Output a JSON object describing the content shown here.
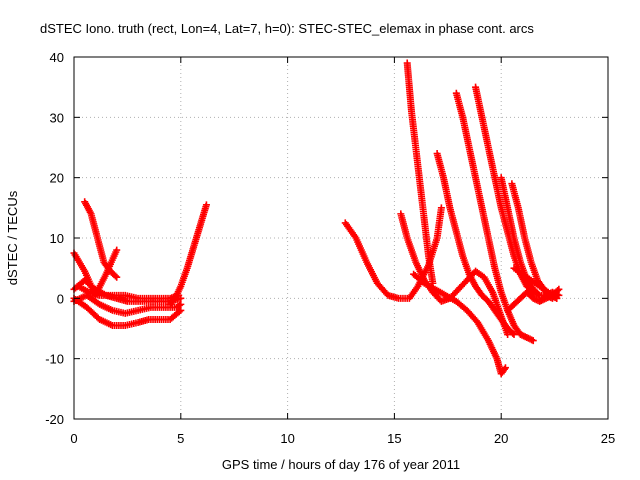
{
  "chart_data": {
    "type": "scatter",
    "title": "dSTEC Iono. truth (rect, Lon=4, Lat=7, h=0): STEC-STEC_elemax in phase cont. arcs",
    "xlabel": "GPS time / hours of day 176 of year 2011",
    "ylabel": "dSTEC  / TECUs",
    "xlim": [
      0,
      25
    ],
    "ylim": [
      -20,
      40
    ],
    "xticks": [
      0,
      5,
      10,
      15,
      20,
      25
    ],
    "yticks": [
      -20,
      -10,
      0,
      10,
      20,
      30,
      40
    ],
    "grid": true,
    "marker": "+",
    "color": "#ff0000",
    "series": [
      {
        "x": [
          0.0,
          0.5,
          1.0,
          1.5,
          2.0
        ],
        "y": [
          7.5,
          4.5,
          0.5,
          4.0,
          8.0
        ]
      },
      {
        "x": [
          0.5,
          0.8,
          1.1,
          1.4,
          1.7,
          2.0
        ],
        "y": [
          16.0,
          14.0,
          10.0,
          6.0,
          4.5,
          3.5
        ]
      },
      {
        "x": [
          0.0,
          0.6,
          1.2,
          1.8,
          2.4,
          3.0,
          3.5,
          4.0,
          4.5,
          5.0
        ],
        "y": [
          0.0,
          -1.5,
          -3.5,
          -4.5,
          -4.5,
          -4.0,
          -3.5,
          -3.5,
          -3.5,
          -2.0
        ]
      },
      {
        "x": [
          0.0,
          0.6,
          1.2,
          1.8,
          2.4,
          3.0,
          3.6,
          4.2,
          4.8,
          5.0
        ],
        "y": [
          -0.5,
          0.5,
          -1.0,
          -2.0,
          -2.5,
          -2.0,
          -1.5,
          -1.5,
          -1.5,
          -1.0
        ]
      },
      {
        "x": [
          0.0,
          0.5,
          1.0,
          1.5,
          2.0,
          2.5,
          3.0,
          3.5,
          4.0,
          4.5,
          5.0
        ],
        "y": [
          1.5,
          3.0,
          1.5,
          0.5,
          0.0,
          -0.5,
          -0.5,
          -0.5,
          -0.5,
          -0.5,
          0.0
        ]
      },
      {
        "x": [
          0.2,
          0.7,
          1.2,
          1.8,
          2.4,
          3.0,
          3.5,
          4.0,
          4.5,
          4.9
        ],
        "y": [
          2.0,
          1.0,
          0.5,
          0.5,
          0.5,
          0.0,
          0.0,
          0.0,
          0.0,
          0.5
        ]
      },
      {
        "x": [
          4.5,
          4.8,
          5.0,
          5.3,
          5.6,
          5.9,
          6.2
        ],
        "y": [
          -1.0,
          0.5,
          2.0,
          5.0,
          8.5,
          12.0,
          15.5
        ]
      },
      {
        "x": [
          12.7,
          13.2,
          13.7,
          14.2,
          14.7,
          15.2,
          15.7,
          16.1,
          16.6,
          17.0,
          17.2
        ],
        "y": [
          12.5,
          10.0,
          6.0,
          2.5,
          0.5,
          0.0,
          0.0,
          2.0,
          5.5,
          10.0,
          15.0
        ]
      },
      {
        "x": [
          15.3,
          15.6,
          16.0,
          16.4,
          16.8,
          17.2,
          17.6,
          18.0,
          18.4,
          18.8,
          19.2,
          19.6,
          20.0,
          20.3
        ],
        "y": [
          14.0,
          10.0,
          6.0,
          3.0,
          1.0,
          -0.5,
          0.0,
          1.5,
          3.0,
          4.5,
          3.5,
          1.0,
          -3.0,
          -6.0
        ]
      },
      {
        "x": [
          15.6,
          15.7,
          15.8,
          16.0,
          16.2,
          16.4,
          16.6,
          16.8
        ],
        "y": [
          39.0,
          35.0,
          31.0,
          25.0,
          19.0,
          13.0,
          7.0,
          2.5
        ]
      },
      {
        "x": [
          17.0,
          17.3,
          17.6,
          17.9,
          18.2,
          18.5,
          18.8,
          19.1,
          19.4,
          19.7,
          20.0,
          20.3,
          20.6
        ],
        "y": [
          24.0,
          20.0,
          15.0,
          11.0,
          7.0,
          4.0,
          2.0,
          0.5,
          -0.5,
          -2.0,
          -3.5,
          -5.0,
          -6.0
        ]
      },
      {
        "x": [
          17.9,
          18.2,
          18.5,
          18.8,
          19.1,
          19.4,
          19.7,
          20.0,
          20.3,
          20.6,
          20.9,
          21.2,
          21.5
        ],
        "y": [
          34.0,
          30.0,
          25.0,
          20.0,
          15.0,
          10.0,
          5.0,
          1.0,
          -2.0,
          -4.5,
          -6.0,
          -6.5,
          -7.0
        ]
      },
      {
        "x": [
          15.9,
          16.4,
          16.9,
          17.4,
          17.9,
          18.4,
          18.9,
          19.4,
          19.8,
          20.0,
          20.2
        ],
        "y": [
          4.0,
          2.5,
          1.5,
          0.5,
          -0.5,
          -2.0,
          -4.0,
          -7.0,
          -10.0,
          -12.5,
          -11.5
        ]
      },
      {
        "x": [
          18.8,
          19.1,
          19.4,
          19.7,
          20.0,
          20.3,
          20.6,
          20.9,
          21.2,
          21.5,
          21.8,
          22.1,
          22.4
        ],
        "y": [
          35.0,
          30.0,
          25.0,
          20.0,
          15.0,
          11.0,
          7.0,
          4.0,
          2.0,
          1.0,
          0.5,
          0.5,
          0.0
        ]
      },
      {
        "x": [
          20.0,
          20.3,
          20.6,
          20.9,
          21.2,
          21.5,
          21.8,
          22.1,
          22.4,
          22.7
        ],
        "y": [
          20.0,
          15.0,
          10.0,
          6.0,
          3.0,
          1.5,
          0.5,
          0.5,
          1.0,
          0.5
        ]
      },
      {
        "x": [
          20.5,
          20.8,
          21.1,
          21.4,
          21.7,
          22.0,
          22.3,
          22.6
        ],
        "y": [
          19.0,
          15.0,
          10.0,
          6.0,
          3.0,
          1.5,
          0.5,
          0.0
        ]
      },
      {
        "x": [
          20.6,
          21.0,
          21.4,
          21.8,
          22.2,
          22.6
        ],
        "y": [
          5.0,
          4.0,
          3.0,
          2.0,
          1.0,
          0.0
        ]
      },
      {
        "x": [
          20.3,
          20.6,
          20.9,
          21.2,
          21.5,
          21.8,
          22.1,
          22.4,
          22.7
        ],
        "y": [
          -2.0,
          -1.0,
          0.0,
          1.0,
          0.0,
          -0.5,
          0.0,
          0.5,
          1.5
        ]
      }
    ]
  }
}
